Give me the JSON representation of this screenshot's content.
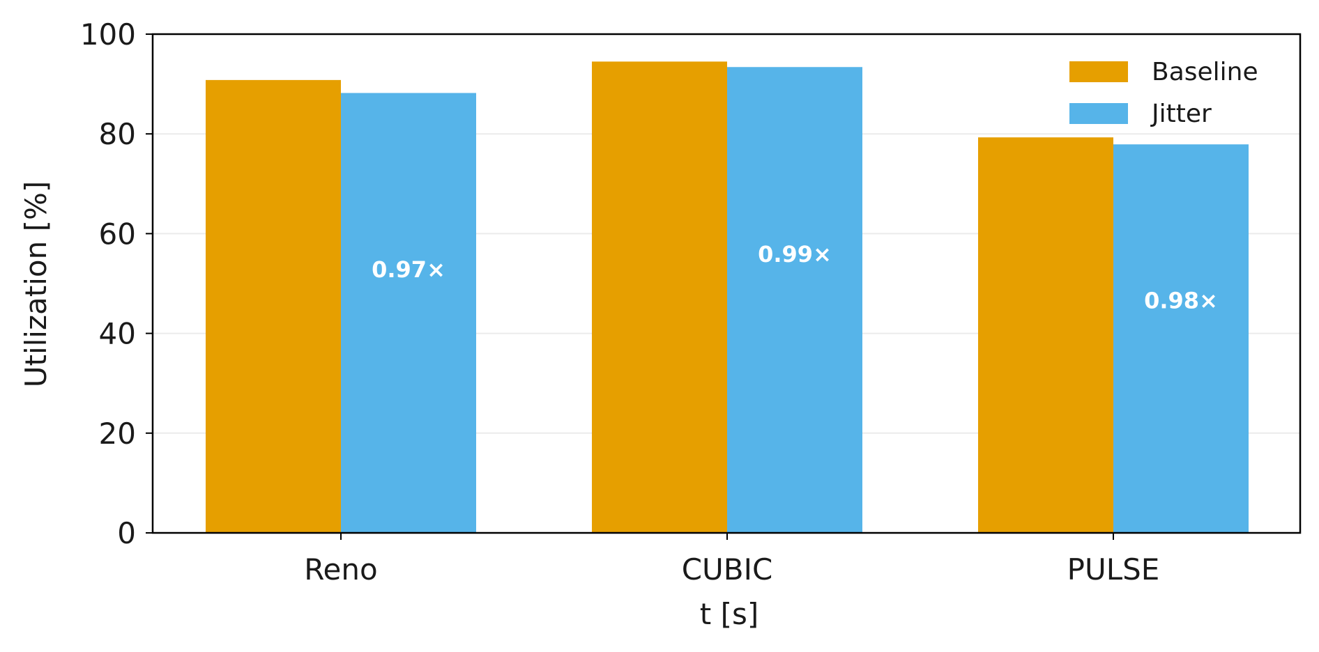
{
  "colors": {
    "baseline": "#E69F00",
    "jitter": "#56B4E9",
    "grid": "#ebebeb",
    "axis": "#000000",
    "ratio_text": "#ffffff"
  },
  "chart_data": {
    "type": "bar",
    "xlabel": "t [s]",
    "ylabel": "Utilization [%]",
    "ylim": [
      0,
      100
    ],
    "yticks": [
      0,
      20,
      40,
      60,
      80,
      100
    ],
    "grid": "horizontal",
    "legend_position": "top-right",
    "categories": [
      "Reno",
      "CUBIC",
      "PULSE"
    ],
    "series": [
      {
        "name": "Baseline",
        "color": "#E69F00",
        "values": [
          90.8,
          94.5,
          79.3
        ]
      },
      {
        "name": "Jitter",
        "color": "#56B4E9",
        "values": [
          88.2,
          93.4,
          77.9
        ]
      }
    ],
    "annotations": [
      "0.97×",
      "0.99×",
      "0.98×"
    ]
  }
}
